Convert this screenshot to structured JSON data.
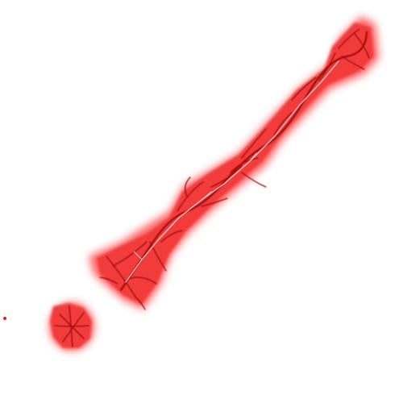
{
  "colors": {
    "background": "#ffffff",
    "glow": "#ff4a4a",
    "halo": "#f23a3a",
    "body": "#e61c1c",
    "vein": "#9e0a0a",
    "highlight": "#ffd9d9"
  }
}
